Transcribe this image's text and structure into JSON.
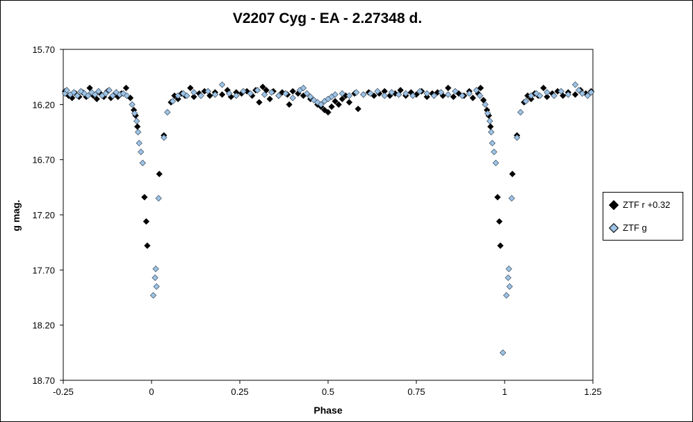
{
  "chart_data": {
    "type": "scatter",
    "title": "V2207 Cyg - EA - 2.27348  d.",
    "xlabel": "Phase",
    "ylabel": "g mag.",
    "xlim": [
      -0.25,
      1.25
    ],
    "ylim": [
      18.7,
      15.7
    ],
    "y_inverted": true,
    "grid": false,
    "legend_position": "right",
    "x_ticks": [
      "-0.25",
      "0",
      "0.25",
      "0.5",
      "0.75",
      "1",
      "1.25"
    ],
    "y_ticks": [
      "15.70",
      "16.20",
      "16.70",
      "17.20",
      "17.70",
      "18.20",
      "18.70"
    ],
    "series": [
      {
        "name": "ZTF r +0.32",
        "color": "#000000",
        "points": [
          [
            -0.245,
            16.08
          ],
          [
            -0.235,
            16.12
          ],
          [
            -0.225,
            16.14
          ],
          [
            -0.215,
            16.1
          ],
          [
            -0.205,
            16.13
          ],
          [
            -0.195,
            16.09
          ],
          [
            -0.185,
            16.13
          ],
          [
            -0.175,
            16.05
          ],
          [
            -0.165,
            16.12
          ],
          [
            -0.155,
            16.15
          ],
          [
            -0.145,
            16.1
          ],
          [
            -0.135,
            16.13
          ],
          [
            -0.125,
            16.08
          ],
          [
            -0.115,
            16.14
          ],
          [
            -0.105,
            16.11
          ],
          [
            -0.095,
            16.13
          ],
          [
            -0.085,
            16.1
          ],
          [
            -0.072,
            16.05
          ],
          [
            -0.06,
            16.14
          ],
          [
            -0.05,
            16.25
          ],
          [
            -0.045,
            16.3
          ],
          [
            -0.04,
            16.4
          ],
          [
            -0.02,
            17.04
          ],
          [
            -0.015,
            17.26
          ],
          [
            -0.012,
            17.48
          ],
          [
            0.022,
            16.83
          ],
          [
            0.035,
            16.48
          ],
          [
            0.055,
            16.18
          ],
          [
            0.065,
            16.12
          ],
          [
            0.075,
            16.15
          ],
          [
            0.085,
            16.1
          ],
          [
            0.095,
            16.12
          ],
          [
            0.11,
            16.05
          ],
          [
            0.12,
            16.13
          ],
          [
            0.135,
            16.1
          ],
          [
            0.15,
            16.08
          ],
          [
            0.165,
            16.12
          ],
          [
            0.18,
            16.09
          ],
          [
            0.2,
            16.11
          ],
          [
            0.215,
            16.07
          ],
          [
            0.225,
            16.13
          ],
          [
            0.24,
            16.09
          ],
          [
            0.255,
            16.1
          ],
          [
            0.27,
            16.08
          ],
          [
            0.285,
            16.12
          ],
          [
            0.295,
            16.07
          ],
          [
            0.305,
            16.18
          ],
          [
            0.315,
            16.04
          ],
          [
            0.325,
            16.07
          ],
          [
            0.335,
            16.15
          ],
          [
            0.345,
            16.08
          ],
          [
            0.36,
            16.12
          ],
          [
            0.37,
            16.09
          ],
          [
            0.385,
            16.11
          ],
          [
            0.39,
            16.2
          ],
          [
            0.4,
            16.08
          ],
          [
            0.415,
            16.1
          ],
          [
            0.43,
            16.12
          ],
          [
            0.45,
            16.15
          ],
          [
            0.47,
            16.2
          ],
          [
            0.48,
            16.22
          ],
          [
            0.49,
            16.25
          ],
          [
            0.5,
            16.27
          ],
          [
            0.51,
            16.22
          ],
          [
            0.52,
            16.17
          ],
          [
            0.53,
            16.2
          ],
          [
            0.54,
            16.15
          ],
          [
            0.55,
            16.12
          ],
          [
            0.56,
            16.18
          ],
          [
            0.575,
            16.1
          ],
          [
            0.585,
            16.24
          ],
          [
            0.6,
            16.11
          ],
          [
            0.615,
            16.09
          ],
          [
            0.63,
            16.12
          ],
          [
            0.645,
            16.1
          ],
          [
            0.66,
            16.08
          ],
          [
            0.675,
            16.12
          ],
          [
            0.69,
            16.1
          ],
          [
            0.705,
            16.07
          ],
          [
            0.72,
            16.12
          ],
          [
            0.735,
            16.09
          ],
          [
            0.75,
            16.11
          ],
          [
            0.765,
            16.08
          ],
          [
            0.78,
            16.13
          ],
          [
            0.795,
            16.1
          ],
          [
            0.81,
            16.09
          ],
          [
            0.825,
            16.12
          ],
          [
            0.84,
            16.05
          ],
          [
            0.855,
            16.13
          ],
          [
            0.87,
            16.1
          ],
          [
            0.885,
            16.12
          ],
          [
            0.9,
            16.08
          ],
          [
            0.91,
            16.14
          ],
          [
            0.925,
            16.1
          ],
          [
            0.932,
            16.05
          ],
          [
            0.94,
            16.16
          ],
          [
            0.95,
            16.25
          ],
          [
            0.955,
            16.3
          ],
          [
            0.96,
            16.4
          ],
          [
            0.98,
            17.04
          ],
          [
            0.985,
            17.26
          ],
          [
            0.988,
            17.48
          ],
          [
            1.022,
            16.83
          ],
          [
            1.035,
            16.48
          ],
          [
            1.055,
            16.18
          ],
          [
            1.065,
            16.12
          ],
          [
            1.075,
            16.15
          ],
          [
            1.085,
            16.1
          ],
          [
            1.095,
            16.12
          ],
          [
            1.11,
            16.05
          ],
          [
            1.12,
            16.13
          ],
          [
            1.135,
            16.1
          ],
          [
            1.15,
            16.08
          ],
          [
            1.165,
            16.12
          ],
          [
            1.18,
            16.09
          ],
          [
            1.2,
            16.11
          ],
          [
            1.215,
            16.07
          ],
          [
            1.23,
            16.1
          ],
          [
            1.245,
            16.08
          ]
        ]
      },
      {
        "name": "ZTF g",
        "color": "#9dc3e6",
        "points": [
          [
            -0.245,
            16.1
          ],
          [
            -0.24,
            16.07
          ],
          [
            -0.23,
            16.11
          ],
          [
            -0.22,
            16.09
          ],
          [
            -0.21,
            16.12
          ],
          [
            -0.2,
            16.08
          ],
          [
            -0.19,
            16.1
          ],
          [
            -0.18,
            16.12
          ],
          [
            -0.17,
            16.09
          ],
          [
            -0.16,
            16.11
          ],
          [
            -0.15,
            16.08
          ],
          [
            -0.14,
            16.12
          ],
          [
            -0.13,
            16.1
          ],
          [
            -0.12,
            16.07
          ],
          [
            -0.11,
            16.12
          ],
          [
            -0.1,
            16.09
          ],
          [
            -0.09,
            16.11
          ],
          [
            -0.08,
            16.1
          ],
          [
            -0.07,
            16.12
          ],
          [
            -0.055,
            16.2
          ],
          [
            -0.048,
            16.28
          ],
          [
            -0.042,
            16.35
          ],
          [
            -0.038,
            16.45
          ],
          [
            -0.035,
            16.55
          ],
          [
            -0.03,
            16.63
          ],
          [
            -0.025,
            16.73
          ],
          [
            0.005,
            17.93
          ],
          [
            0.01,
            17.77
          ],
          [
            0.012,
            17.69
          ],
          [
            0.014,
            17.85
          ],
          [
            0.02,
            17.05
          ],
          [
            0.035,
            16.5
          ],
          [
            0.045,
            16.27
          ],
          [
            0.06,
            16.17
          ],
          [
            0.075,
            16.12
          ],
          [
            0.09,
            16.1
          ],
          [
            0.1,
            16.12
          ],
          [
            0.12,
            16.09
          ],
          [
            0.14,
            16.12
          ],
          [
            0.16,
            16.08
          ],
          [
            0.18,
            16.11
          ],
          [
            0.2,
            16.02
          ],
          [
            0.22,
            16.1
          ],
          [
            0.24,
            16.12
          ],
          [
            0.26,
            16.08
          ],
          [
            0.28,
            16.1
          ],
          [
            0.3,
            16.07
          ],
          [
            0.32,
            16.11
          ],
          [
            0.34,
            16.09
          ],
          [
            0.36,
            16.12
          ],
          [
            0.38,
            16.1
          ],
          [
            0.4,
            16.14
          ],
          [
            0.42,
            16.07
          ],
          [
            0.43,
            16.05
          ],
          [
            0.44,
            16.1
          ],
          [
            0.45,
            16.13
          ],
          [
            0.46,
            16.16
          ],
          [
            0.47,
            16.18
          ],
          [
            0.48,
            16.2
          ],
          [
            0.49,
            16.17
          ],
          [
            0.5,
            16.15
          ],
          [
            0.51,
            16.13
          ],
          [
            0.52,
            16.11
          ],
          [
            0.54,
            16.1
          ],
          [
            0.56,
            16.12
          ],
          [
            0.58,
            16.09
          ],
          [
            0.6,
            16.11
          ],
          [
            0.62,
            16.1
          ],
          [
            0.64,
            16.08
          ],
          [
            0.66,
            16.12
          ],
          [
            0.68,
            16.09
          ],
          [
            0.7,
            16.11
          ],
          [
            0.72,
            16.1
          ],
          [
            0.74,
            16.12
          ],
          [
            0.76,
            16.08
          ],
          [
            0.78,
            16.1
          ],
          [
            0.8,
            16.12
          ],
          [
            0.82,
            16.09
          ],
          [
            0.84,
            16.11
          ],
          [
            0.86,
            16.08
          ],
          [
            0.88,
            16.12
          ],
          [
            0.9,
            16.1
          ],
          [
            0.92,
            16.07
          ],
          [
            0.93,
            16.12
          ],
          [
            0.945,
            16.2
          ],
          [
            0.952,
            16.28
          ],
          [
            0.958,
            16.35
          ],
          [
            0.962,
            16.45
          ],
          [
            0.965,
            16.55
          ],
          [
            0.97,
            16.63
          ],
          [
            0.975,
            16.73
          ],
          [
            0.995,
            18.45
          ],
          [
            1.005,
            17.93
          ],
          [
            1.01,
            17.77
          ],
          [
            1.012,
            17.69
          ],
          [
            1.014,
            17.85
          ],
          [
            1.02,
            17.05
          ],
          [
            1.035,
            16.5
          ],
          [
            1.045,
            16.27
          ],
          [
            1.06,
            16.17
          ],
          [
            1.075,
            16.12
          ],
          [
            1.09,
            16.1
          ],
          [
            1.1,
            16.12
          ],
          [
            1.12,
            16.09
          ],
          [
            1.14,
            16.12
          ],
          [
            1.16,
            16.08
          ],
          [
            1.18,
            16.11
          ],
          [
            1.2,
            16.02
          ],
          [
            1.21,
            16.07
          ],
          [
            1.22,
            16.1
          ],
          [
            1.235,
            16.12
          ],
          [
            1.245,
            16.09
          ]
        ]
      }
    ]
  }
}
